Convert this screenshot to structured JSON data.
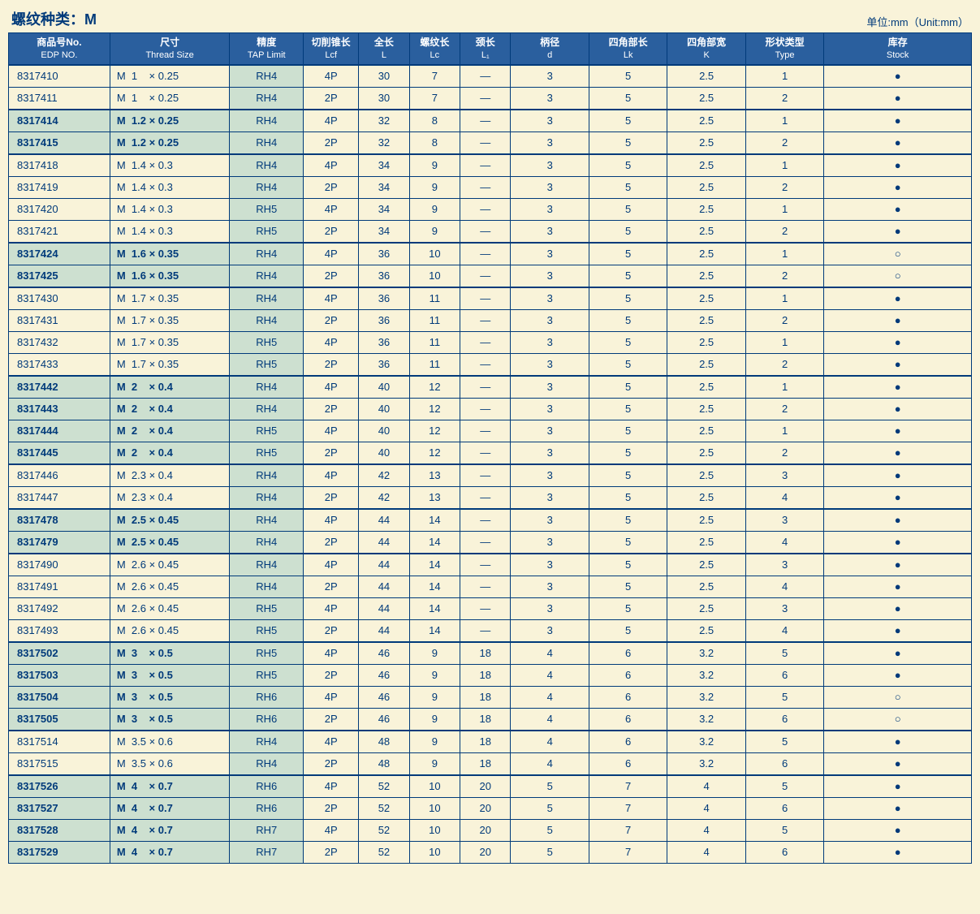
{
  "title": "螺纹种类：M",
  "unit": "单位:mm（Unit:mm）",
  "headers": [
    {
      "top": "商品号No.",
      "sub": "EDP NO."
    },
    {
      "top": "尺寸",
      "sub": "Thread Size"
    },
    {
      "top": "精度",
      "sub": "TAP Limit"
    },
    {
      "top": "切削锥长",
      "sub": "Lcf"
    },
    {
      "top": "全长",
      "sub": "L"
    },
    {
      "top": "螺纹长",
      "sub": "Lc"
    },
    {
      "top": "颈长",
      "sub": "L₁"
    },
    {
      "top": "柄径",
      "sub": "d"
    },
    {
      "top": "四角部长",
      "sub": "Lk"
    },
    {
      "top": "四角部宽",
      "sub": "K"
    },
    {
      "top": "形状类型",
      "sub": "Type"
    },
    {
      "top": "库存",
      "sub": "Stock"
    }
  ],
  "groups": [
    [
      {
        "edp": "8317410",
        "size": "M  1    × 0.25",
        "tap": "RH4",
        "lcf": "4P",
        "L": "30",
        "Lc": "7",
        "L1": "—",
        "d": "3",
        "Lk": "5",
        "K": "2.5",
        "type": "1",
        "stock": "●",
        "hl": false
      },
      {
        "edp": "8317411",
        "size": "M  1    × 0.25",
        "tap": "RH4",
        "lcf": "2P",
        "L": "30",
        "Lc": "7",
        "L1": "—",
        "d": "3",
        "Lk": "5",
        "K": "2.5",
        "type": "2",
        "stock": "●",
        "hl": false
      }
    ],
    [
      {
        "edp": "8317414",
        "size": "M  1.2 × 0.25",
        "tap": "RH4",
        "lcf": "4P",
        "L": "32",
        "Lc": "8",
        "L1": "—",
        "d": "3",
        "Lk": "5",
        "K": "2.5",
        "type": "1",
        "stock": "●",
        "hl": true
      },
      {
        "edp": "8317415",
        "size": "M  1.2 × 0.25",
        "tap": "RH4",
        "lcf": "2P",
        "L": "32",
        "Lc": "8",
        "L1": "—",
        "d": "3",
        "Lk": "5",
        "K": "2.5",
        "type": "2",
        "stock": "●",
        "hl": true
      }
    ],
    [
      {
        "edp": "8317418",
        "size": "M  1.4 × 0.3",
        "tap": "RH4",
        "lcf": "4P",
        "L": "34",
        "Lc": "9",
        "L1": "—",
        "d": "3",
        "Lk": "5",
        "K": "2.5",
        "type": "1",
        "stock": "●",
        "hl": false
      },
      {
        "edp": "8317419",
        "size": "M  1.4 × 0.3",
        "tap": "RH4",
        "lcf": "2P",
        "L": "34",
        "Lc": "9",
        "L1": "—",
        "d": "3",
        "Lk": "5",
        "K": "2.5",
        "type": "2",
        "stock": "●",
        "hl": false
      },
      {
        "edp": "8317420",
        "size": "M  1.4 × 0.3",
        "tap": "RH5",
        "lcf": "4P",
        "L": "34",
        "Lc": "9",
        "L1": "—",
        "d": "3",
        "Lk": "5",
        "K": "2.5",
        "type": "1",
        "stock": "●",
        "hl": false
      },
      {
        "edp": "8317421",
        "size": "M  1.4 × 0.3",
        "tap": "RH5",
        "lcf": "2P",
        "L": "34",
        "Lc": "9",
        "L1": "—",
        "d": "3",
        "Lk": "5",
        "K": "2.5",
        "type": "2",
        "stock": "●",
        "hl": false
      }
    ],
    [
      {
        "edp": "8317424",
        "size": "M  1.6 × 0.35",
        "tap": "RH4",
        "lcf": "4P",
        "L": "36",
        "Lc": "10",
        "L1": "—",
        "d": "3",
        "Lk": "5",
        "K": "2.5",
        "type": "1",
        "stock": "○",
        "hl": true
      },
      {
        "edp": "8317425",
        "size": "M  1.6 × 0.35",
        "tap": "RH4",
        "lcf": "2P",
        "L": "36",
        "Lc": "10",
        "L1": "—",
        "d": "3",
        "Lk": "5",
        "K": "2.5",
        "type": "2",
        "stock": "○",
        "hl": true
      }
    ],
    [
      {
        "edp": "8317430",
        "size": "M  1.7 × 0.35",
        "tap": "RH4",
        "lcf": "4P",
        "L": "36",
        "Lc": "11",
        "L1": "—",
        "d": "3",
        "Lk": "5",
        "K": "2.5",
        "type": "1",
        "stock": "●",
        "hl": false
      },
      {
        "edp": "8317431",
        "size": "M  1.7 × 0.35",
        "tap": "RH4",
        "lcf": "2P",
        "L": "36",
        "Lc": "11",
        "L1": "—",
        "d": "3",
        "Lk": "5",
        "K": "2.5",
        "type": "2",
        "stock": "●",
        "hl": false
      },
      {
        "edp": "8317432",
        "size": "M  1.7 × 0.35",
        "tap": "RH5",
        "lcf": "4P",
        "L": "36",
        "Lc": "11",
        "L1": "—",
        "d": "3",
        "Lk": "5",
        "K": "2.5",
        "type": "1",
        "stock": "●",
        "hl": false
      },
      {
        "edp": "8317433",
        "size": "M  1.7 × 0.35",
        "tap": "RH5",
        "lcf": "2P",
        "L": "36",
        "Lc": "11",
        "L1": "—",
        "d": "3",
        "Lk": "5",
        "K": "2.5",
        "type": "2",
        "stock": "●",
        "hl": false
      }
    ],
    [
      {
        "edp": "8317442",
        "size": "M  2    × 0.4",
        "tap": "RH4",
        "lcf": "4P",
        "L": "40",
        "Lc": "12",
        "L1": "—",
        "d": "3",
        "Lk": "5",
        "K": "2.5",
        "type": "1",
        "stock": "●",
        "hl": true
      },
      {
        "edp": "8317443",
        "size": "M  2    × 0.4",
        "tap": "RH4",
        "lcf": "2P",
        "L": "40",
        "Lc": "12",
        "L1": "—",
        "d": "3",
        "Lk": "5",
        "K": "2.5",
        "type": "2",
        "stock": "●",
        "hl": true
      },
      {
        "edp": "8317444",
        "size": "M  2    × 0.4",
        "tap": "RH5",
        "lcf": "4P",
        "L": "40",
        "Lc": "12",
        "L1": "—",
        "d": "3",
        "Lk": "5",
        "K": "2.5",
        "type": "1",
        "stock": "●",
        "hl": true
      },
      {
        "edp": "8317445",
        "size": "M  2    × 0.4",
        "tap": "RH5",
        "lcf": "2P",
        "L": "40",
        "Lc": "12",
        "L1": "—",
        "d": "3",
        "Lk": "5",
        "K": "2.5",
        "type": "2",
        "stock": "●",
        "hl": true
      }
    ],
    [
      {
        "edp": "8317446",
        "size": "M  2.3 × 0.4",
        "tap": "RH4",
        "lcf": "4P",
        "L": "42",
        "Lc": "13",
        "L1": "—",
        "d": "3",
        "Lk": "5",
        "K": "2.5",
        "type": "3",
        "stock": "●",
        "hl": false
      },
      {
        "edp": "8317447",
        "size": "M  2.3 × 0.4",
        "tap": "RH4",
        "lcf": "2P",
        "L": "42",
        "Lc": "13",
        "L1": "—",
        "d": "3",
        "Lk": "5",
        "K": "2.5",
        "type": "4",
        "stock": "●",
        "hl": false
      }
    ],
    [
      {
        "edp": "8317478",
        "size": "M  2.5 × 0.45",
        "tap": "RH4",
        "lcf": "4P",
        "L": "44",
        "Lc": "14",
        "L1": "—",
        "d": "3",
        "Lk": "5",
        "K": "2.5",
        "type": "3",
        "stock": "●",
        "hl": true
      },
      {
        "edp": "8317479",
        "size": "M  2.5 × 0.45",
        "tap": "RH4",
        "lcf": "2P",
        "L": "44",
        "Lc": "14",
        "L1": "—",
        "d": "3",
        "Lk": "5",
        "K": "2.5",
        "type": "4",
        "stock": "●",
        "hl": true
      }
    ],
    [
      {
        "edp": "8317490",
        "size": "M  2.6 × 0.45",
        "tap": "RH4",
        "lcf": "4P",
        "L": "44",
        "Lc": "14",
        "L1": "—",
        "d": "3",
        "Lk": "5",
        "K": "2.5",
        "type": "3",
        "stock": "●",
        "hl": false
      },
      {
        "edp": "8317491",
        "size": "M  2.6 × 0.45",
        "tap": "RH4",
        "lcf": "2P",
        "L": "44",
        "Lc": "14",
        "L1": "—",
        "d": "3",
        "Lk": "5",
        "K": "2.5",
        "type": "4",
        "stock": "●",
        "hl": false
      },
      {
        "edp": "8317492",
        "size": "M  2.6 × 0.45",
        "tap": "RH5",
        "lcf": "4P",
        "L": "44",
        "Lc": "14",
        "L1": "—",
        "d": "3",
        "Lk": "5",
        "K": "2.5",
        "type": "3",
        "stock": "●",
        "hl": false
      },
      {
        "edp": "8317493",
        "size": "M  2.6 × 0.45",
        "tap": "RH5",
        "lcf": "2P",
        "L": "44",
        "Lc": "14",
        "L1": "—",
        "d": "3",
        "Lk": "5",
        "K": "2.5",
        "type": "4",
        "stock": "●",
        "hl": false
      }
    ],
    [
      {
        "edp": "8317502",
        "size": "M  3    × 0.5",
        "tap": "RH5",
        "lcf": "4P",
        "L": "46",
        "Lc": "9",
        "L1": "18",
        "d": "4",
        "Lk": "6",
        "K": "3.2",
        "type": "5",
        "stock": "●",
        "hl": true
      },
      {
        "edp": "8317503",
        "size": "M  3    × 0.5",
        "tap": "RH5",
        "lcf": "2P",
        "L": "46",
        "Lc": "9",
        "L1": "18",
        "d": "4",
        "Lk": "6",
        "K": "3.2",
        "type": "6",
        "stock": "●",
        "hl": true
      },
      {
        "edp": "8317504",
        "size": "M  3    × 0.5",
        "tap": "RH6",
        "lcf": "4P",
        "L": "46",
        "Lc": "9",
        "L1": "18",
        "d": "4",
        "Lk": "6",
        "K": "3.2",
        "type": "5",
        "stock": "○",
        "hl": true
      },
      {
        "edp": "8317505",
        "size": "M  3    × 0.5",
        "tap": "RH6",
        "lcf": "2P",
        "L": "46",
        "Lc": "9",
        "L1": "18",
        "d": "4",
        "Lk": "6",
        "K": "3.2",
        "type": "6",
        "stock": "○",
        "hl": true
      }
    ],
    [
      {
        "edp": "8317514",
        "size": "M  3.5 × 0.6",
        "tap": "RH4",
        "lcf": "4P",
        "L": "48",
        "Lc": "9",
        "L1": "18",
        "d": "4",
        "Lk": "6",
        "K": "3.2",
        "type": "5",
        "stock": "●",
        "hl": false
      },
      {
        "edp": "8317515",
        "size": "M  3.5 × 0.6",
        "tap": "RH4",
        "lcf": "2P",
        "L": "48",
        "Lc": "9",
        "L1": "18",
        "d": "4",
        "Lk": "6",
        "K": "3.2",
        "type": "6",
        "stock": "●",
        "hl": false
      }
    ],
    [
      {
        "edp": "8317526",
        "size": "M  4    × 0.7",
        "tap": "RH6",
        "lcf": "4P",
        "L": "52",
        "Lc": "10",
        "L1": "20",
        "d": "5",
        "Lk": "7",
        "K": "4",
        "type": "5",
        "stock": "●",
        "hl": true
      },
      {
        "edp": "8317527",
        "size": "M  4    × 0.7",
        "tap": "RH6",
        "lcf": "2P",
        "L": "52",
        "Lc": "10",
        "L1": "20",
        "d": "5",
        "Lk": "7",
        "K": "4",
        "type": "6",
        "stock": "●",
        "hl": true
      },
      {
        "edp": "8317528",
        "size": "M  4    × 0.7",
        "tap": "RH7",
        "lcf": "4P",
        "L": "52",
        "Lc": "10",
        "L1": "20",
        "d": "5",
        "Lk": "7",
        "K": "4",
        "type": "5",
        "stock": "●",
        "hl": true
      },
      {
        "edp": "8317529",
        "size": "M  4    × 0.7",
        "tap": "RH7",
        "lcf": "2P",
        "L": "52",
        "Lc": "10",
        "L1": "20",
        "d": "5",
        "Lk": "7",
        "K": "4",
        "type": "6",
        "stock": "●",
        "hl": true
      }
    ]
  ]
}
